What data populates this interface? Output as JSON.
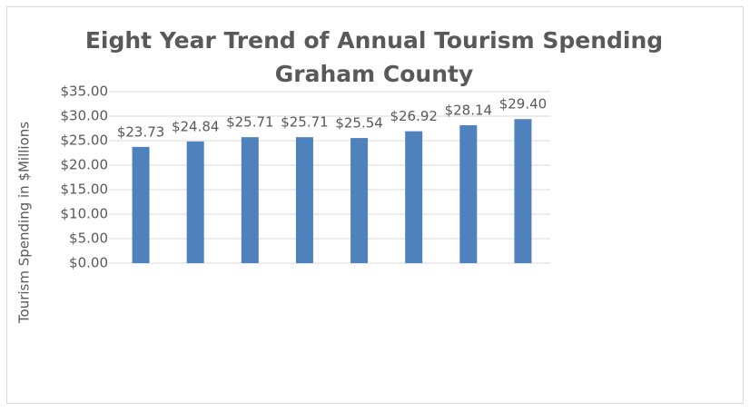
{
  "chart_data": {
    "type": "bar",
    "title": [
      "Eight Year Trend of Annual Tourism Spending",
      "Graham County"
    ],
    "y_label": "Tourism Spending in $Millions",
    "categories": [
      null,
      null,
      null,
      null,
      null,
      null,
      null,
      null
    ],
    "values": [
      23.73,
      24.84,
      25.71,
      25.71,
      25.54,
      26.92,
      28.14,
      29.4
    ],
    "value_labels": [
      "$23.73",
      "$24.84",
      "$25.71",
      "$25.71",
      "$25.54",
      "$26.92",
      "$28.14",
      "$29.40"
    ],
    "color": "#4f81bd",
    "ylim": [
      0,
      35
    ],
    "yticks": [
      {
        "value": 0,
        "label": "$0.00"
      },
      {
        "value": 5,
        "label": "$5.00"
      },
      {
        "value": 10,
        "label": "$10.00"
      },
      {
        "value": 15,
        "label": "$15.00"
      },
      {
        "value": 20,
        "label": "$20.00"
      },
      {
        "value": 25,
        "label": "$25.00"
      },
      {
        "value": 30,
        "label": "$30.00"
      },
      {
        "value": 35,
        "label": "$35.00"
      }
    ],
    "grid": true
  }
}
